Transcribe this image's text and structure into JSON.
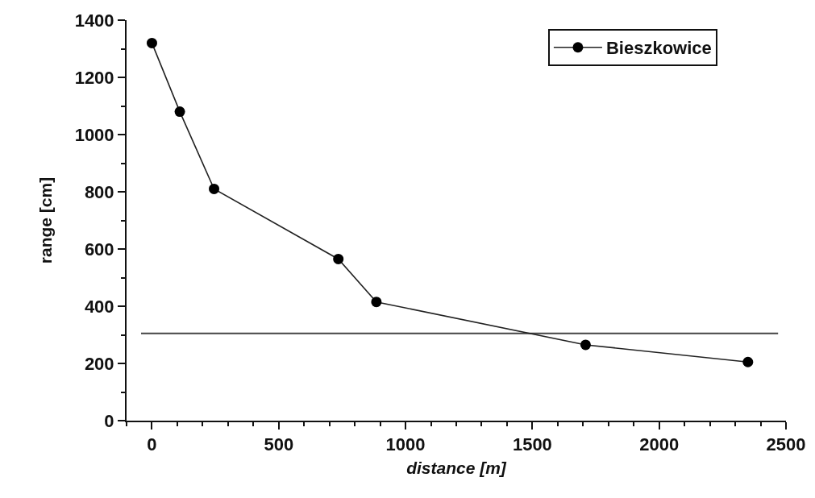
{
  "chart_data": {
    "type": "line",
    "xlabel": "distance [m]",
    "ylabel": "range [cm]",
    "x": [
      0,
      110,
      245,
      735,
      885,
      1710,
      2350
    ],
    "series": [
      {
        "name": "Bieszkowice",
        "color": "#222222",
        "values": [
          1320,
          1080,
          810,
          565,
          415,
          265,
          205
        ]
      }
    ],
    "xlim": [
      -100,
      2500
    ],
    "ylim": [
      0,
      1400
    ],
    "xticks": [
      0,
      500,
      1000,
      1500,
      2000,
      2500
    ],
    "yticks": [
      0,
      200,
      400,
      600,
      800,
      1000,
      1200,
      1400
    ],
    "grid": false,
    "legend": "top right",
    "marker": "circle",
    "line_style": "solid",
    "ref_lines": [
      {
        "axis": "y",
        "value": 305,
        "color": "#444444"
      }
    ]
  }
}
